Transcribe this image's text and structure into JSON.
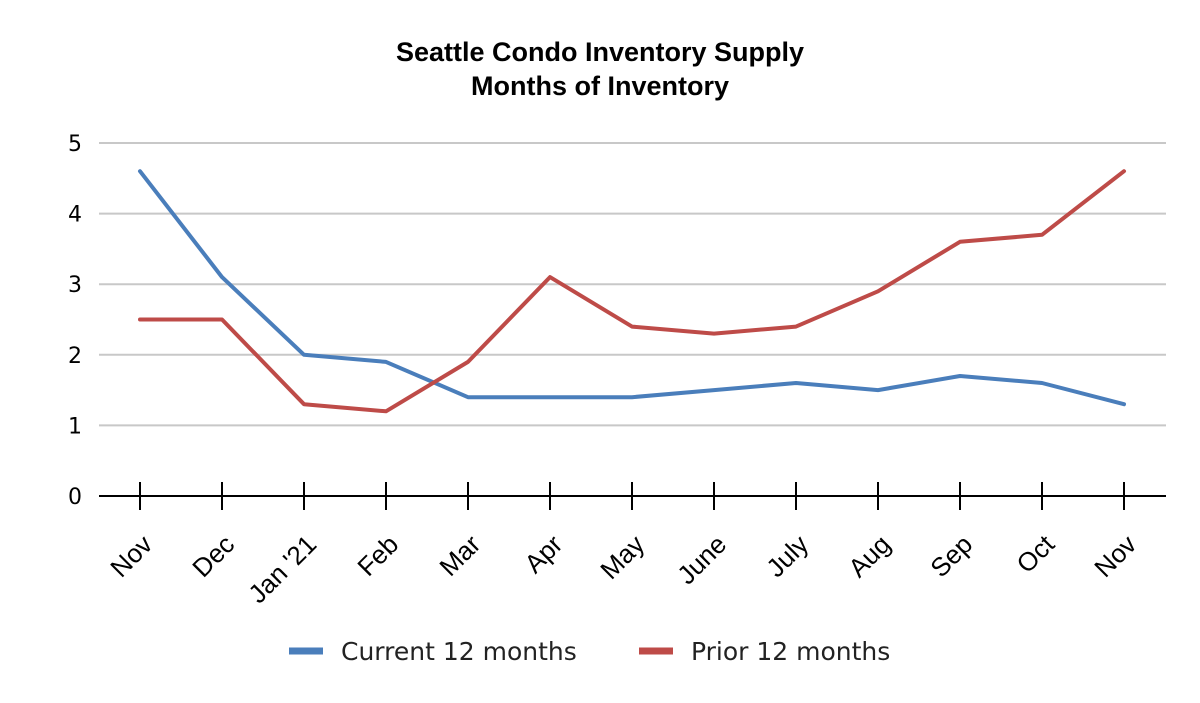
{
  "chart_data": {
    "type": "line",
    "title": "Seattle Condo Inventory Supply",
    "subtitle": "Months of Inventory",
    "xlabel": "",
    "ylabel": "",
    "categories": [
      "Nov",
      "Dec",
      "Jan '21",
      "Feb",
      "Mar",
      "Apr",
      "May",
      "June",
      "July",
      "Aug",
      "Sep",
      "Oct",
      "Nov"
    ],
    "ylim": [
      0,
      5
    ],
    "yticks": [
      "0",
      "1",
      "2",
      "3",
      "4",
      "5"
    ],
    "grid": true,
    "legend_position": "bottom",
    "series": [
      {
        "name": "Current 12 months",
        "color": "#4a7ebb",
        "values": [
          4.6,
          3.1,
          2.0,
          1.9,
          1.4,
          1.4,
          1.4,
          1.5,
          1.6,
          1.5,
          1.7,
          1.6,
          1.3
        ]
      },
      {
        "name": "Prior 12 months",
        "color": "#be4b48",
        "values": [
          2.5,
          2.5,
          1.3,
          1.2,
          1.9,
          3.1,
          2.4,
          2.3,
          2.4,
          2.9,
          3.6,
          3.7,
          4.6
        ]
      }
    ]
  }
}
